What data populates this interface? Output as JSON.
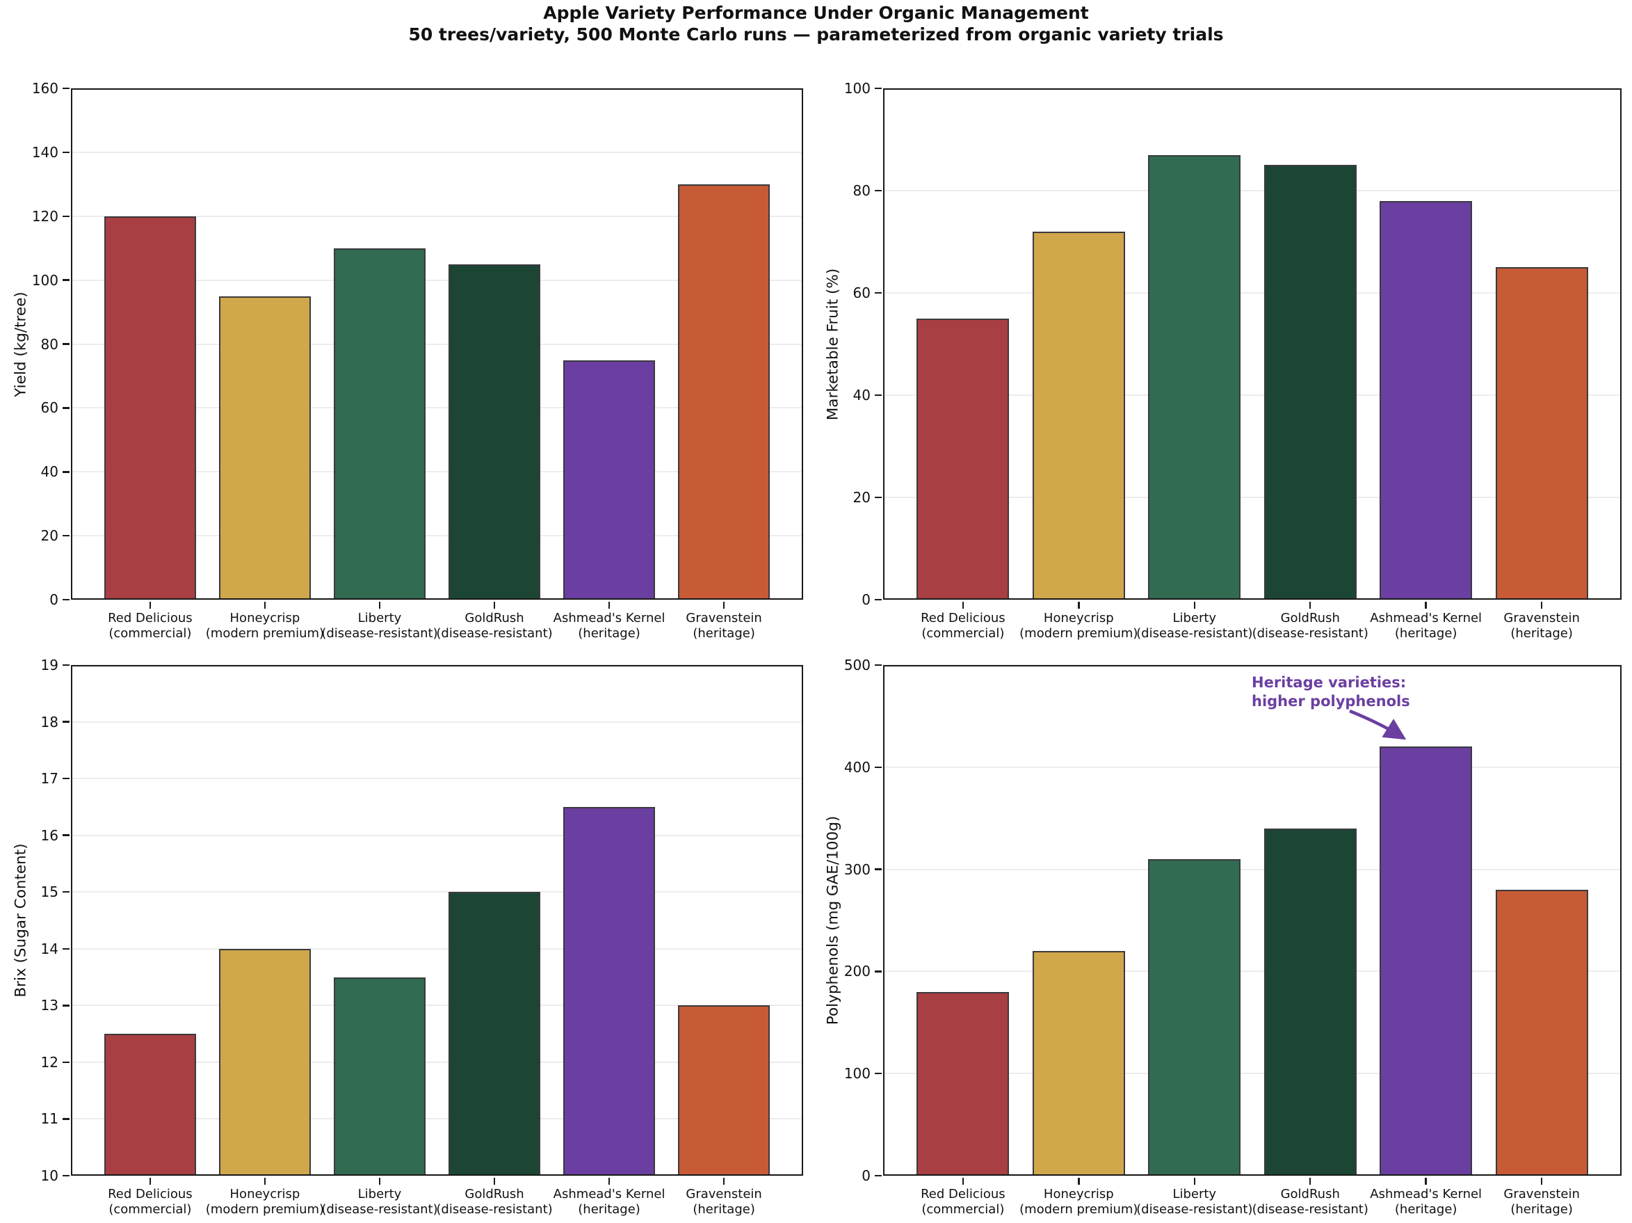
{
  "header": {
    "title": "Apple Variety Performance Under Organic Management",
    "subtitle": "50 trees/variety, 500 Monte Carlo runs — parameterized from organic variety trials"
  },
  "varieties": [
    {
      "line1": "Red Delicious",
      "line2": "(commercial)",
      "color": "#A83F43"
    },
    {
      "line1": "Honeycrisp",
      "line2": "(modern premium)",
      "color": "#D1A74B"
    },
    {
      "line1": "Liberty",
      "line2": "(disease-resistant)",
      "color": "#316B51"
    },
    {
      "line1": "GoldRush",
      "line2": "(disease-resistant)",
      "color": "#1C4633"
    },
    {
      "line1": "Ashmead's Kernel",
      "line2": "(heritage)",
      "color": "#6B3FA1"
    },
    {
      "line1": "Gravenstein",
      "line2": "(heritage)",
      "color": "#C65B35"
    }
  ],
  "style": {
    "bar_edge_color": "#3a3a3e",
    "grid_color": "#ececec",
    "spine_color": "#1a1a1a",
    "annotation_color": "#6B3FA1"
  },
  "chart_data": [
    {
      "id": "yield",
      "type": "bar",
      "title": "",
      "ylabel": "Yield (kg/tree)",
      "xlabel": "",
      "ylim": [
        0,
        160
      ],
      "ytick_step": 20,
      "grid": true,
      "categories": [
        "Red Delicious (commercial)",
        "Honeycrisp (modern premium)",
        "Liberty (disease-resistant)",
        "GoldRush (disease-resistant)",
        "Ashmead's Kernel (heritage)",
        "Gravenstein (heritage)"
      ],
      "values": [
        120,
        95,
        110,
        105,
        75,
        130
      ]
    },
    {
      "id": "marketable-fruit",
      "type": "bar",
      "title": "",
      "ylabel": "Marketable Fruit (%)",
      "xlabel": "",
      "ylim": [
        0,
        100
      ],
      "ytick_step": 20,
      "grid": true,
      "categories": [
        "Red Delicious (commercial)",
        "Honeycrisp (modern premium)",
        "Liberty (disease-resistant)",
        "GoldRush (disease-resistant)",
        "Ashmead's Kernel (heritage)",
        "Gravenstein (heritage)"
      ],
      "values": [
        55,
        72,
        87,
        85,
        78,
        65
      ]
    },
    {
      "id": "brix",
      "type": "bar",
      "title": "",
      "ylabel": "Brix (Sugar Content)",
      "xlabel": "",
      "ylim": [
        10,
        19
      ],
      "ytick_step": 1,
      "grid": true,
      "categories": [
        "Red Delicious (commercial)",
        "Honeycrisp (modern premium)",
        "Liberty (disease-resistant)",
        "GoldRush (disease-resistant)",
        "Ashmead's Kernel (heritage)",
        "Gravenstein (heritage)"
      ],
      "values": [
        12.5,
        14.0,
        13.5,
        15.0,
        16.5,
        13.0
      ]
    },
    {
      "id": "polyphenols",
      "type": "bar",
      "title": "",
      "ylabel": "Polyphenols (mg GAE/100g)",
      "xlabel": "",
      "ylim": [
        0,
        500
      ],
      "ytick_step": 100,
      "grid": true,
      "categories": [
        "Red Delicious (commercial)",
        "Honeycrisp (modern premium)",
        "Liberty (disease-resistant)",
        "GoldRush (disease-resistant)",
        "Ashmead's Kernel (heritage)",
        "Gravenstein (heritage)"
      ],
      "values": [
        180,
        220,
        310,
        340,
        420,
        280
      ],
      "annotation": {
        "lines": [
          "Heritage varieties:",
          "higher polyphenols"
        ],
        "target_category": "Ashmead's Kernel (heritage)"
      }
    }
  ]
}
